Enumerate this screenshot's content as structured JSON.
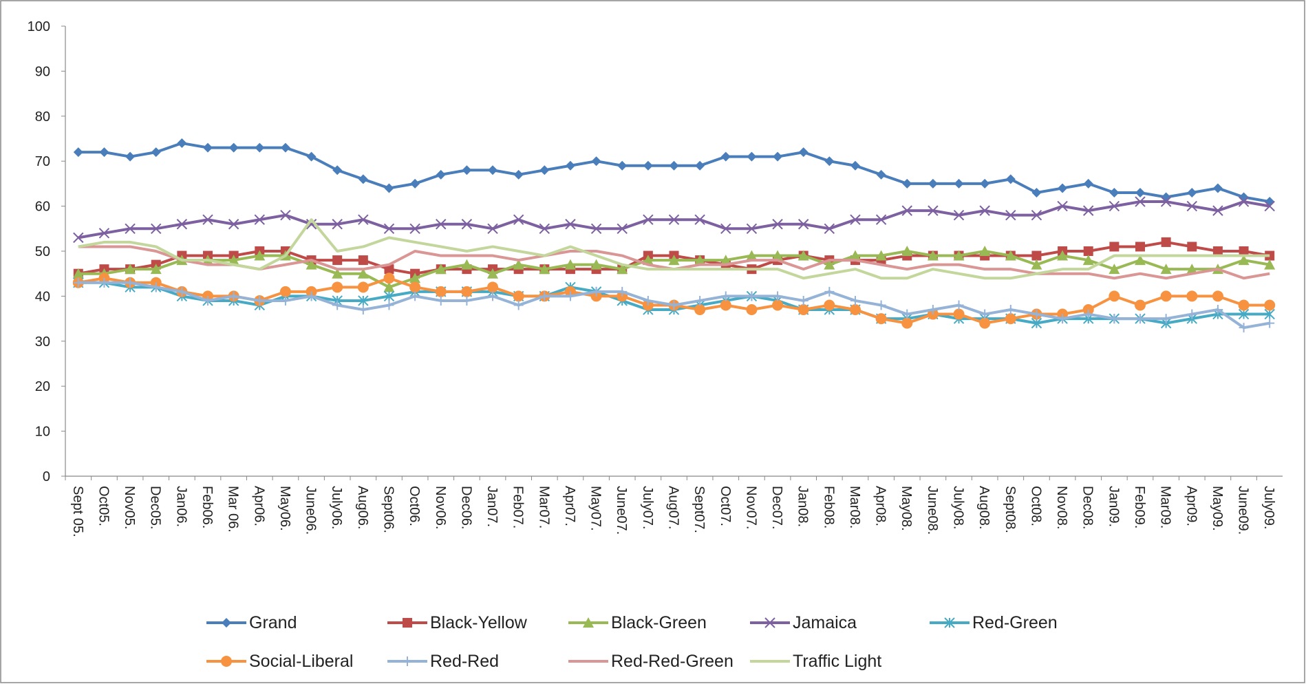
{
  "chart_data": {
    "type": "line",
    "categories": [
      "Sept 05.",
      "Oct05.",
      "Nov05.",
      "Dec05.",
      "Jan06.",
      "Feb06.",
      "Mar 06.",
      "Apr06.",
      "May06.",
      "June06.",
      "July06.",
      "Aug06.",
      "Sept06.",
      "Oct06.",
      "Nov06.",
      "Dec06.",
      "Jan07.",
      "Feb07.",
      "Mar07.",
      "Apr07.",
      "May07.",
      "June07.",
      "July07.",
      "Aug07.",
      "Sept07.",
      "Oct07.",
      "Nov07.",
      "Dec07.",
      "Jan08.",
      "Feb08.",
      "Mar08.",
      "Apr08.",
      "May08.",
      "June08.",
      "July08.",
      "Aug08.",
      "Sept08.",
      "Oct08.",
      "Nov08.",
      "Dec08.",
      "Jan09.",
      "Feb09.",
      "Mar09.",
      "Apr09.",
      "May09.",
      "June09.",
      "July09."
    ],
    "series": [
      {
        "name": "Grand",
        "color": "#4a7ebb",
        "marker": "diamond",
        "values": [
          72,
          72,
          71,
          72,
          74,
          73,
          73,
          73,
          73,
          71,
          68,
          66,
          64,
          65,
          67,
          68,
          68,
          67,
          68,
          69,
          70,
          69,
          69,
          69,
          69,
          71,
          71,
          71,
          72,
          70,
          69,
          67,
          65,
          65,
          65,
          65,
          66,
          63,
          64,
          65,
          63,
          63,
          62,
          63,
          64,
          62,
          61
        ]
      },
      {
        "name": "Black-Yellow",
        "color": "#be4b48",
        "marker": "square",
        "values": [
          45,
          46,
          46,
          47,
          49,
          49,
          49,
          50,
          50,
          48,
          48,
          48,
          46,
          45,
          46,
          46,
          46,
          46,
          46,
          46,
          46,
          46,
          49,
          49,
          48,
          47,
          46,
          48,
          49,
          48,
          48,
          48,
          49,
          49,
          49,
          49,
          49,
          49,
          50,
          50,
          51,
          51,
          52,
          51,
          50,
          50,
          49
        ]
      },
      {
        "name": "Black-Green",
        "color": "#98b954",
        "marker": "triangle",
        "values": [
          45,
          45,
          46,
          46,
          48,
          48,
          48,
          49,
          49,
          47,
          45,
          45,
          42,
          44,
          46,
          47,
          45,
          47,
          46,
          47,
          47,
          46,
          48,
          48,
          48,
          48,
          49,
          49,
          49,
          47,
          49,
          49,
          50,
          49,
          49,
          50,
          49,
          47,
          49,
          48,
          46,
          48,
          46,
          46,
          46,
          48,
          47
        ]
      },
      {
        "name": "Jamaica",
        "color": "#7d60a0",
        "marker": "x",
        "values": [
          53,
          54,
          55,
          55,
          56,
          57,
          56,
          57,
          58,
          56,
          56,
          57,
          55,
          55,
          56,
          56,
          55,
          57,
          55,
          56,
          55,
          55,
          57,
          57,
          57,
          55,
          55,
          56,
          56,
          55,
          57,
          57,
          59,
          59,
          58,
          59,
          58,
          58,
          60,
          59,
          60,
          61,
          61,
          60,
          59,
          61,
          60
        ]
      },
      {
        "name": "Red-Green",
        "color": "#46aac5",
        "marker": "star",
        "values": [
          43,
          43,
          42,
          42,
          40,
          39,
          39,
          38,
          40,
          40,
          39,
          39,
          40,
          41,
          41,
          41,
          41,
          40,
          40,
          42,
          41,
          39,
          37,
          37,
          38,
          39,
          40,
          39,
          37,
          37,
          37,
          35,
          35,
          36,
          35,
          35,
          35,
          34,
          35,
          35,
          35,
          35,
          34,
          35,
          36,
          36,
          36
        ]
      },
      {
        "name": "Social-Liberal",
        "color": "#f69240",
        "marker": "circle",
        "values": [
          43,
          44,
          43,
          43,
          41,
          40,
          40,
          39,
          41,
          41,
          42,
          42,
          44,
          42,
          41,
          41,
          42,
          40,
          40,
          41,
          40,
          40,
          38,
          38,
          37,
          38,
          37,
          38,
          37,
          38,
          37,
          35,
          34,
          36,
          36,
          34,
          35,
          36,
          36,
          37,
          40,
          38,
          40,
          40,
          40,
          38,
          38
        ]
      },
      {
        "name": "Red-Red",
        "color": "#95b3d7",
        "marker": "plus",
        "values": [
          43,
          43,
          43,
          42,
          41,
          39,
          40,
          39,
          39,
          40,
          38,
          37,
          38,
          40,
          39,
          39,
          40,
          38,
          40,
          40,
          41,
          41,
          39,
          38,
          39,
          40,
          40,
          40,
          39,
          41,
          39,
          38,
          36,
          37,
          38,
          36,
          37,
          36,
          35,
          36,
          35,
          35,
          35,
          36,
          37,
          33,
          34
        ]
      },
      {
        "name": "Red-Red-Green",
        "color": "#d99694",
        "marker": "none",
        "values": [
          51,
          51,
          51,
          50,
          48,
          47,
          47,
          46,
          47,
          48,
          46,
          46,
          47,
          50,
          49,
          49,
          49,
          48,
          49,
          50,
          50,
          49,
          47,
          46,
          47,
          47,
          48,
          48,
          46,
          48,
          48,
          47,
          46,
          47,
          47,
          46,
          46,
          45,
          45,
          45,
          44,
          45,
          44,
          45,
          46,
          44,
          45
        ]
      },
      {
        "name": "Traffic Light",
        "color": "#c3d69b",
        "marker": "none",
        "values": [
          51,
          52,
          52,
          51,
          48,
          48,
          47,
          46,
          49,
          57,
          50,
          51,
          53,
          52,
          51,
          50,
          51,
          50,
          49,
          51,
          49,
          47,
          46,
          46,
          46,
          46,
          46,
          46,
          44,
          45,
          46,
          44,
          44,
          46,
          45,
          44,
          44,
          45,
          46,
          46,
          49,
          49,
          49,
          49,
          49,
          49,
          49
        ]
      }
    ],
    "ylim": [
      0,
      100
    ],
    "yticks": [
      0,
      10,
      20,
      30,
      40,
      50,
      60,
      70,
      80,
      90,
      100
    ],
    "grid": false,
    "legend": "bottom"
  }
}
